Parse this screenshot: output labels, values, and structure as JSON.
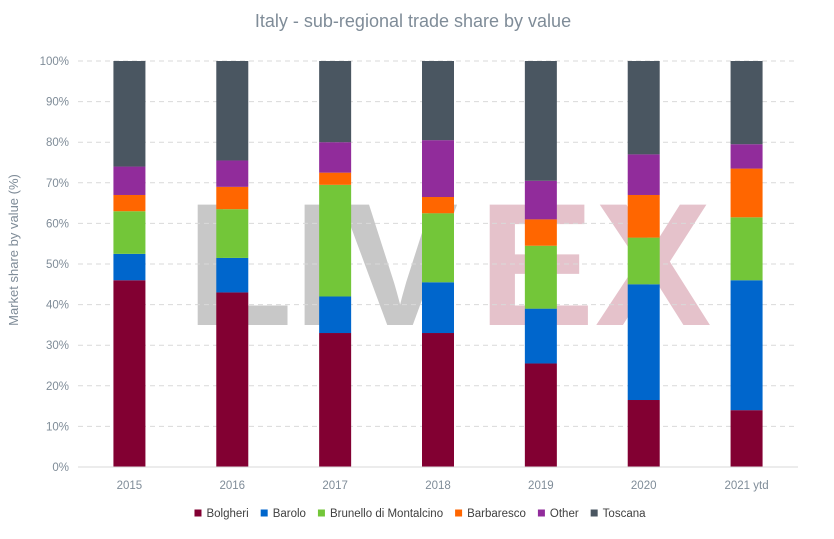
{
  "chart_data": {
    "type": "bar",
    "stacked": true,
    "title": "Italy - sub-regional trade share by value",
    "ylabel": "Market share by value (%)",
    "xlabel": "",
    "ylim": [
      0,
      100
    ],
    "yticks": [
      0,
      10,
      20,
      30,
      40,
      50,
      60,
      70,
      80,
      90,
      100
    ],
    "ytick_suffix": "%",
    "grid": true,
    "legend_position": "bottom",
    "watermark": "LIVEX",
    "watermark_colors": [
      "#c8c8c8",
      "#e5c2cb"
    ],
    "categories": [
      "2015",
      "2016",
      "2017",
      "2018",
      "2019",
      "2020",
      "2021 ytd"
    ],
    "series": [
      {
        "name": "Bolgheri",
        "color": "#820032",
        "values": [
          46,
          43,
          33,
          33,
          25.5,
          16.5,
          14
        ]
      },
      {
        "name": "Barolo",
        "color": "#0066cc",
        "values": [
          6.5,
          8.5,
          9,
          12.5,
          13.5,
          28.5,
          32
        ]
      },
      {
        "name": "Brunello di Montalcino",
        "color": "#73c639",
        "values": [
          10.5,
          12,
          27.5,
          17,
          15.5,
          11.5,
          15.5
        ]
      },
      {
        "name": "Barbaresco",
        "color": "#ff6600",
        "values": [
          4,
          5.5,
          3,
          4,
          6.5,
          10.5,
          12
        ]
      },
      {
        "name": "Other",
        "color": "#912c9b",
        "values": [
          7,
          6.5,
          7.5,
          14,
          9.5,
          10,
          6
        ]
      },
      {
        "name": "Toscana",
        "color": "#4a5661",
        "values": [
          26,
          24.5,
          20,
          19.5,
          29.5,
          23,
          20.5
        ]
      }
    ]
  }
}
